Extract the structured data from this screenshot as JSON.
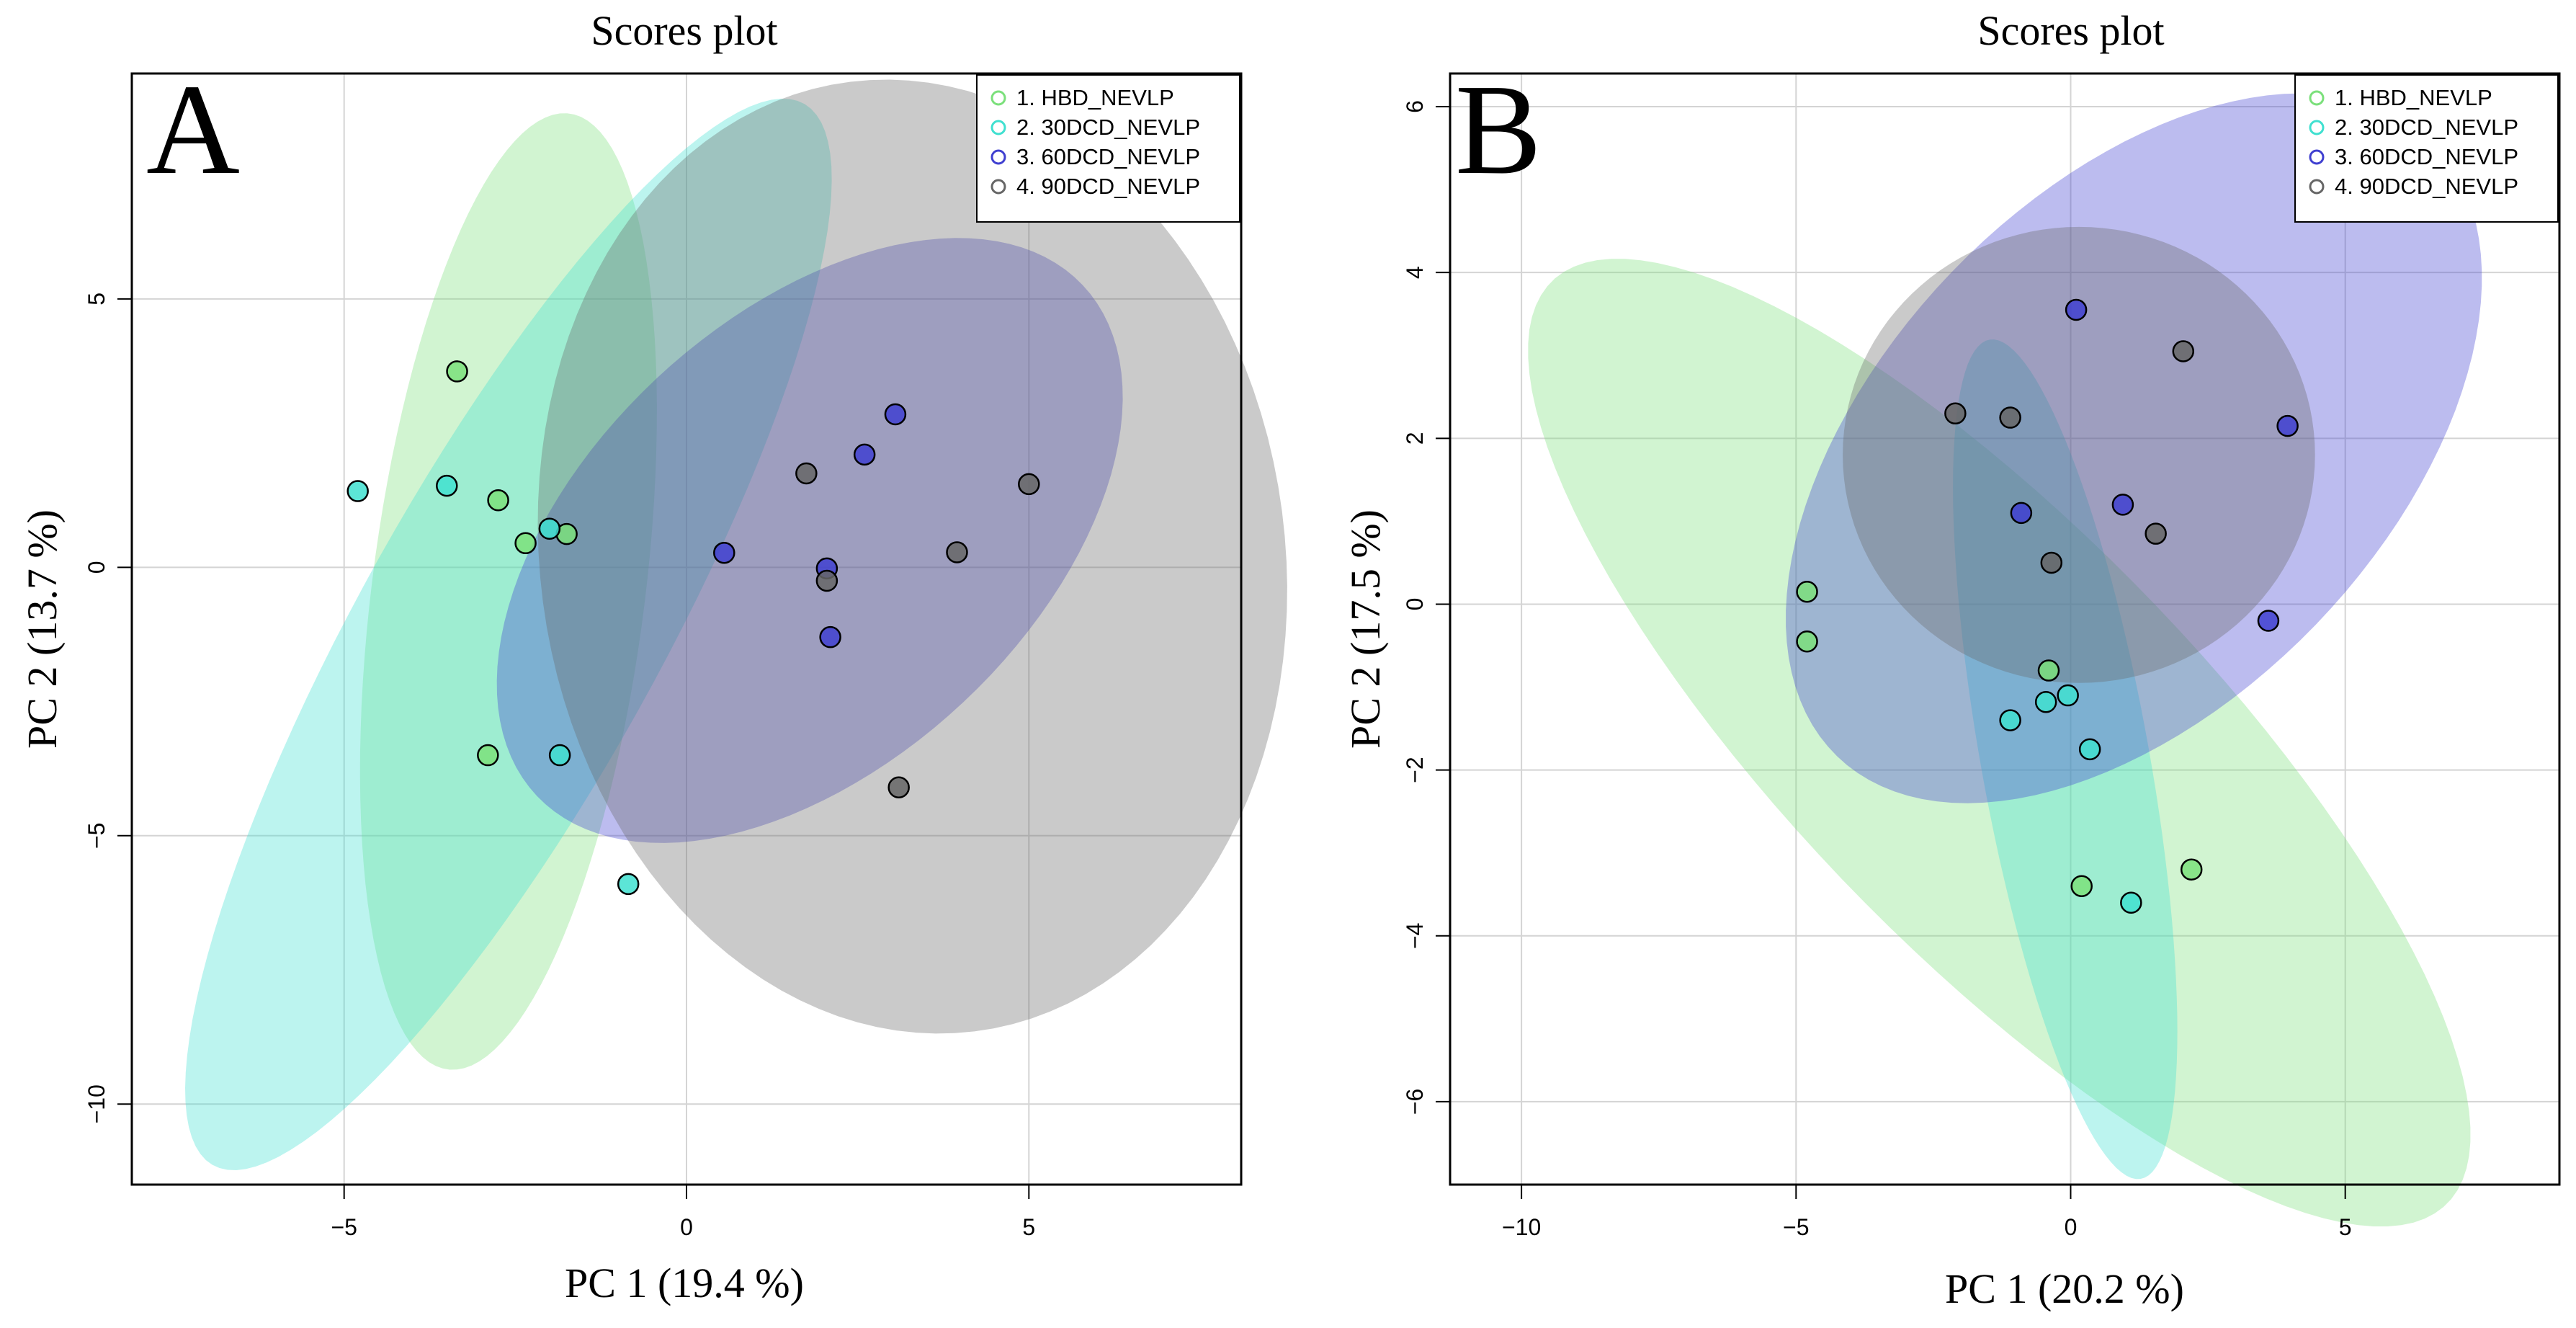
{
  "chart_data": [
    {
      "type": "scatter",
      "panel_label": "A",
      "title": "Scores plot",
      "xlabel": "PC 1 (19.4 %)",
      "ylabel": "PC 2 (13.7 %)",
      "xlim": [
        -8.1,
        8.1
      ],
      "ylim": [
        -11.5,
        9.2
      ],
      "xticks": [
        -5,
        0,
        5
      ],
      "yticks": [
        -10,
        -5,
        0,
        5
      ],
      "grid": true,
      "legend": "top-right",
      "series": [
        {
          "name": "1. HBD_NEVLP",
          "color": "#7BE07B",
          "points": [
            [
              -3.35,
              3.65
            ],
            [
              -2.75,
              1.25
            ],
            [
              -2.35,
              0.45
            ],
            [
              -1.75,
              0.62
            ],
            [
              -2.9,
              -3.5
            ]
          ],
          "ellipse": {
            "cx": -2.6,
            "cy": -0.45,
            "rx": 8.95,
            "ry": 2.0,
            "angle": 84.5
          }
        },
        {
          "name": "2. 30DCD_NEVLP",
          "color": "#40E0D0",
          "points": [
            [
              -4.8,
              1.42
            ],
            [
              -3.5,
              1.52
            ],
            [
              -2.0,
              0.72
            ],
            [
              -1.85,
              -3.5
            ],
            [
              -0.85,
              -5.9
            ]
          ],
          "ellipse": {
            "cx": -2.6,
            "cy": -1.25,
            "rx": 10.8,
            "ry": 2.3,
            "angle": 67
          }
        },
        {
          "name": "3. 60DCD_NEVLP",
          "color": "#4040D0",
          "points": [
            [
              0.55,
              0.27
            ],
            [
              2.05,
              -0.02
            ],
            [
              2.1,
              -1.3
            ],
            [
              2.6,
              2.1
            ],
            [
              3.05,
              2.85
            ]
          ],
          "ellipse": {
            "cx": 1.8,
            "cy": 0.5,
            "rx": 6.3,
            "ry": 3.6,
            "angle": 57
          }
        },
        {
          "name": "4. 90DCD_NEVLP",
          "color": "#666666",
          "points": [
            [
              1.75,
              1.75
            ],
            [
              2.05,
              -0.25
            ],
            [
              3.95,
              0.28
            ],
            [
              5.0,
              1.55
            ],
            [
              3.1,
              -4.1
            ]
          ],
          "ellipse": {
            "cx": 3.3,
            "cy": 0.2,
            "rx": 5.45,
            "ry": 8.9,
            "angle": 4
          }
        }
      ]
    },
    {
      "type": "scatter",
      "panel_label": "B",
      "title": "Scores plot",
      "xlabel": "PC 1 (20.2 %)",
      "ylabel": "PC 2 (17.5 %)",
      "xlim": [
        -11.3,
        8.9
      ],
      "ylim": [
        -7.0,
        6.4
      ],
      "xticks": [
        -10,
        -5,
        0,
        5
      ],
      "yticks": [
        -6,
        -4,
        -2,
        0,
        2,
        4,
        6
      ],
      "grid": true,
      "legend": "top-right",
      "series": [
        {
          "name": "1. HBD_NEVLP",
          "color": "#7BE07B",
          "points": [
            [
              -4.8,
              0.15
            ],
            [
              -4.8,
              -0.45
            ],
            [
              -0.4,
              -0.8
            ],
            [
              0.2,
              -3.4
            ],
            [
              2.2,
              -3.2
            ]
          ],
          "ellipse": {
            "cx": -1.3,
            "cy": -1.67,
            "rx": 9.95,
            "ry": 2.95,
            "angle": -32
          }
        },
        {
          "name": "2. 30DCD_NEVLP",
          "color": "#40E0D0",
          "points": [
            [
              -1.1,
              -1.4
            ],
            [
              -0.45,
              -1.18
            ],
            [
              -0.05,
              -1.1
            ],
            [
              0.35,
              -1.75
            ],
            [
              1.1,
              -3.6
            ]
          ],
          "ellipse": {
            "cx": -0.1,
            "cy": -1.87,
            "rx": 5.25,
            "ry": 1.5,
            "angle": -74
          }
        },
        {
          "name": "3. 60DCD_NEVLP",
          "color": "#4040D0",
          "points": [
            [
              0.1,
              3.55
            ],
            [
              -0.9,
              1.1
            ],
            [
              0.95,
              1.2
            ],
            [
              3.95,
              2.15
            ],
            [
              3.6,
              -0.2
            ]
          ],
          "ellipse": {
            "cx": 1.15,
            "cy": 1.88,
            "rx": 6.8,
            "ry": 3.5,
            "angle": 25
          }
        },
        {
          "name": "4. 90DCD_NEVLP",
          "color": "#666666",
          "points": [
            [
              -2.1,
              2.3
            ],
            [
              -1.1,
              2.25
            ],
            [
              2.05,
              3.05
            ],
            [
              1.55,
              0.85
            ],
            [
              -0.35,
              0.5
            ]
          ],
          "ellipse": {
            "cx": 0.15,
            "cy": 1.8,
            "rx": 4.3,
            "ry": 2.75,
            "angle": 0
          }
        }
      ]
    }
  ]
}
